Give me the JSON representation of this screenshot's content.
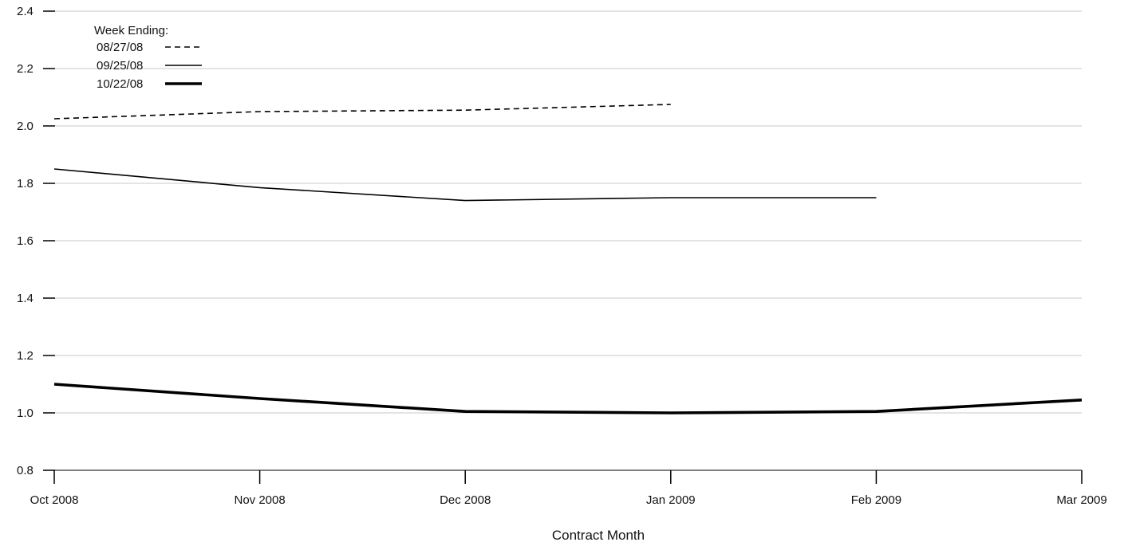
{
  "chart_data": {
    "type": "line",
    "categories": [
      "Oct 2008",
      "Nov 2008",
      "Dec 2008",
      "Jan 2009",
      "Feb 2009",
      "Mar 2009"
    ],
    "xlabel": "Contract Month",
    "ylabel": "",
    "ylim": [
      0.8,
      2.4
    ],
    "yticks": [
      "0.8",
      "1.0",
      "1.2",
      "1.4",
      "1.6",
      "1.8",
      "2.0",
      "2.2",
      "2.4"
    ],
    "grid": "horizontal",
    "legend": {
      "title": "Week Ending:",
      "placement": "top-left"
    },
    "series": [
      {
        "name": "08/27/08",
        "style": "dashed",
        "values": [
          2.025,
          2.05,
          2.055,
          2.075,
          null,
          null
        ]
      },
      {
        "name": "09/25/08",
        "style": "thin",
        "values": [
          1.85,
          1.785,
          1.74,
          1.75,
          1.75,
          null
        ]
      },
      {
        "name": "10/22/08",
        "style": "thick",
        "values": [
          1.1,
          1.05,
          1.005,
          1.0,
          1.005,
          1.045
        ]
      }
    ],
    "colors": {
      "line": "#000000",
      "grid": "#c8c8c8",
      "axis": "#000000"
    }
  }
}
